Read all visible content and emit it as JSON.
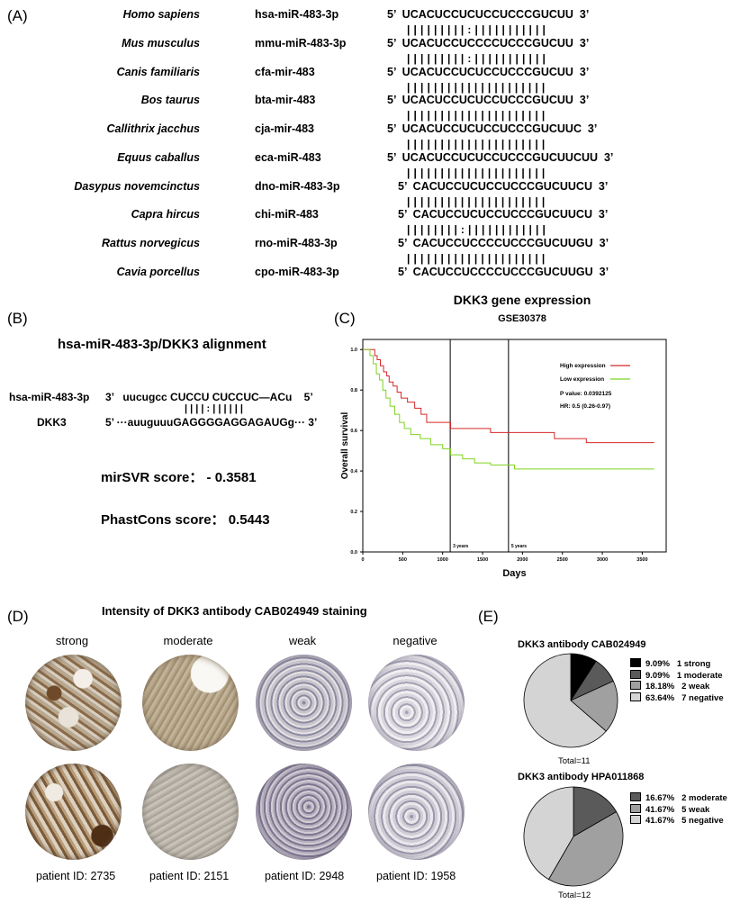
{
  "panels": {
    "a": "(A)",
    "b": "(B)",
    "c": "(C)",
    "d": "(D)",
    "e": "(E)"
  },
  "panelA": {
    "species": [
      {
        "name": "Homo sapiens",
        "mir": "hsa-miR-483-3p",
        "seq": "5’  UCACUCCUCUCCUCCCGUCUU  3’"
      },
      {
        "name": "Mus musculus",
        "mir": "mmu-miR-483-3p",
        "seq": "5’  UCACUCCUCCCCUCCCGUCUU  3’"
      },
      {
        "name": "Canis familiaris",
        "mir": "cfa-mir-483",
        "seq": "5’  UCACUCCUCUCCUCCCGUCUU  3’"
      },
      {
        "name": "Bos taurus",
        "mir": "bta-mir-483",
        "seq": "5’  UCACUCCUCUCCUCCCGUCUU  3’"
      },
      {
        "name": "Callithrix jacchus",
        "mir": "cja-mir-483",
        "seq": "5’  UCACUCCUCUCCUCCCGUCUUC  3’"
      },
      {
        "name": "Equus caballus",
        "mir": "eca-miR-483",
        "seq": "5’  UCACUCCUCUCCUCCCGUCUUCUU  3’"
      },
      {
        "name": "Dasypus novemcinctus",
        "mir": "dno-miR-483-3p",
        "seq": "5’  CACUCCUCUCCUCCCGUCUUCU  3’"
      },
      {
        "name": "Capra hircus",
        "mir": "chi-miR-483",
        "seq": "5’  CACUCCUCUCCUCCCGUCUUCU  3’"
      },
      {
        "name": "Rattus norvegicus",
        "mir": "rno-miR-483-3p",
        "seq": "5’  CACUCCUCCCCUCCCGUCUUGU  3’"
      },
      {
        "name": "Cavia porcellus",
        "mir": "cpo-miR-483-3p",
        "seq": "5’  CACUCCUCCCCUCCCGUCUUGU  3’"
      }
    ],
    "bars": [
      "| | | | | | | | | : | | | | | | | | | | |",
      "| | | | | | | | | : | | | | | | | | | | |",
      "| | | | | | | | | | | | | | | | | | | | |",
      "| | | | | | | | | | | | | | | | | | | | |",
      "| | | | | | | | | | | | | | | | | | | | |",
      "| | | | | | | | | | | | | | | | | | | | |",
      "| | | | | | | | | | | | | | | | | | | | |",
      "| | | | | | | | : | | | | | | | | | | | |",
      "| | | | | | | | | | | | | | | | | | | | |"
    ]
  },
  "panelB": {
    "title": "hsa-miR-483-3p/DKK3 alignment",
    "mir_label": "hsa-miR-483-3p",
    "mir_seq": "3’   uucugcc CUCCU CUCCUC—ACu    5’",
    "pairs": "| | | | : | | | | | |",
    "gene_label": "DKK3",
    "gene_seq": "5’ ···auuguuuGAGGGGAGGAGAUGg··· 3’",
    "mirsvr": "mirSVR score： - 0.3581",
    "phastcons": "PhastCons score： 0.5443"
  },
  "chart_data": {
    "type": "line",
    "title": "DKK3 gene expression",
    "subtitle": "GSE30378",
    "xlabel": "Days",
    "ylabel": "Overall survival",
    "xlim": [
      0,
      3800
    ],
    "ylim": [
      0,
      1.05
    ],
    "xticks": [
      0,
      500,
      1000,
      1500,
      2000,
      2500,
      3000,
      3500
    ],
    "yticks": [
      0.0,
      0.2,
      0.4,
      0.6,
      0.8,
      1.0
    ],
    "vlines": [
      {
        "x": 1095,
        "label": "3 years"
      },
      {
        "x": 1825,
        "label": "5 years"
      }
    ],
    "legend_position": "top-right",
    "annotations": [
      "P value: 0.0392125",
      "HR: 0.5 (0.26-0.97)"
    ],
    "series": [
      {
        "name": "High expression",
        "color": "#d62728",
        "x": [
          0,
          90,
          150,
          180,
          220,
          260,
          300,
          330,
          380,
          430,
          480,
          560,
          650,
          730,
          800,
          1100,
          1600,
          1800,
          2400,
          2800,
          3650
        ],
        "y": [
          1.0,
          1.0,
          0.97,
          0.95,
          0.92,
          0.89,
          0.87,
          0.84,
          0.82,
          0.79,
          0.76,
          0.74,
          0.71,
          0.68,
          0.64,
          0.61,
          0.59,
          0.59,
          0.56,
          0.54,
          0.54
        ]
      },
      {
        "name": "Low expression",
        "color": "#7ed321",
        "x": [
          0,
          90,
          130,
          170,
          210,
          250,
          290,
          340,
          400,
          460,
          520,
          600,
          720,
          850,
          1000,
          1100,
          1250,
          1400,
          1600,
          1900,
          3650
        ],
        "y": [
          1.0,
          0.97,
          0.93,
          0.88,
          0.85,
          0.8,
          0.76,
          0.72,
          0.68,
          0.64,
          0.61,
          0.58,
          0.56,
          0.53,
          0.51,
          0.48,
          0.46,
          0.44,
          0.43,
          0.41,
          0.41
        ]
      }
    ]
  },
  "panelD": {
    "title": "Intensity of DKK3 antibody CAB024949 staining",
    "columns": [
      "strong",
      "moderate",
      "weak",
      "negative"
    ],
    "patients": [
      "patient ID: 2735",
      "patient ID: 2151",
      "patient ID: 2948",
      "patient ID: 1958"
    ]
  },
  "panelE": {
    "pie1": {
      "title": "DKK3 antibody CAB024949",
      "total": "Total=11",
      "legend": [
        {
          "pct": "9.09%",
          "label": "1 strong",
          "value": 9.09,
          "color": "#000000"
        },
        {
          "pct": "9.09%",
          "label": "1 moderate",
          "value": 9.09,
          "color": "#5a5a5a"
        },
        {
          "pct": "18.18%",
          "label": "2 weak",
          "value": 18.18,
          "color": "#a0a0a0"
        },
        {
          "pct": "63.64%",
          "label": "7 negative",
          "value": 63.64,
          "color": "#d4d4d4"
        }
      ]
    },
    "pie2": {
      "title": "DKK3 antibody HPA011868",
      "total": "Total=12",
      "legend": [
        {
          "pct": "16.67%",
          "label": "2 moderate",
          "value": 16.67,
          "color": "#5a5a5a"
        },
        {
          "pct": "41.67%",
          "label": "5 weak",
          "value": 41.67,
          "color": "#a0a0a0"
        },
        {
          "pct": "41.67%",
          "label": "5 negative",
          "value": 41.67,
          "color": "#d4d4d4"
        }
      ]
    }
  }
}
